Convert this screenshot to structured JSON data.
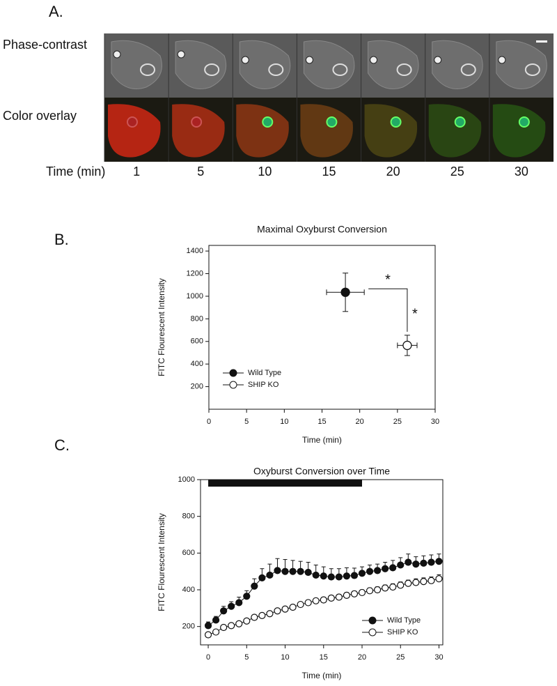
{
  "panel_labels": [
    "A.",
    "B.",
    "C."
  ],
  "panel_a": {
    "row_labels": [
      "Phase-contrast",
      "Color overlay"
    ],
    "time_label": "Time (min)",
    "times": [
      1,
      5,
      10,
      15,
      20,
      25,
      30
    ]
  },
  "chart_data": [
    {
      "type": "scatter",
      "title": "Maximal Oxyburst Conversion",
      "x_label": "Time (min)",
      "y_label": "FITC Flourescent Intensity",
      "xlim": [
        0,
        30
      ],
      "xticks": [
        0,
        5,
        10,
        15,
        20,
        25,
        30
      ],
      "ylim": [
        0,
        1450
      ],
      "yticks": [
        200,
        400,
        600,
        800,
        1000,
        1200,
        1400
      ],
      "legend": "lower left",
      "annotations": [
        "*",
        "*"
      ],
      "series": [
        {
          "name": "Wild Type",
          "color": "#111111",
          "filled": true,
          "x": [
            18.1
          ],
          "values": [
            1035
          ],
          "xerr": [
            2.5
          ],
          "yerr": [
            170
          ]
        },
        {
          "name": "SHIP KO",
          "color": "#111111",
          "filled": false,
          "x": [
            26.3
          ],
          "values": [
            565
          ],
          "xerr": [
            1.3
          ],
          "yerr": [
            90
          ]
        }
      ]
    },
    {
      "type": "line",
      "title": "Oxyburst Conversion over Time",
      "x_label": "Time (min)",
      "y_label": "FITC Flourescent Intensity",
      "xlim": [
        -1,
        30.5
      ],
      "xticks": [
        0,
        5,
        10,
        15,
        20,
        25,
        30
      ],
      "ylim": [
        100,
        1000
      ],
      "yticks": [
        200,
        400,
        600,
        800,
        1000
      ],
      "legend": "lower right",
      "highlight_span": [
        0,
        20
      ],
      "x": [
        0,
        1,
        2,
        3,
        4,
        5,
        6,
        7,
        8,
        9,
        10,
        11,
        12,
        13,
        14,
        15,
        16,
        17,
        18,
        19,
        20,
        21,
        22,
        23,
        24,
        25,
        26,
        27,
        28,
        29,
        30
      ],
      "series": [
        {
          "name": "Wild Type",
          "color": "#111111",
          "filled": true,
          "values": [
            205,
            235,
            285,
            310,
            330,
            365,
            420,
            465,
            480,
            505,
            500,
            500,
            500,
            495,
            480,
            475,
            470,
            470,
            475,
            478,
            490,
            500,
            505,
            515,
            520,
            535,
            550,
            540,
            545,
            550,
            555
          ],
          "yerr": [
            20,
            20,
            25,
            25,
            30,
            30,
            40,
            50,
            60,
            65,
            65,
            60,
            55,
            55,
            55,
            50,
            45,
            45,
            45,
            40,
            35,
            35,
            35,
            35,
            40,
            40,
            45,
            40,
            40,
            40,
            40
          ]
        },
        {
          "name": "SHIP KO",
          "color": "#111111",
          "filled": false,
          "values": [
            155,
            170,
            195,
            205,
            215,
            230,
            250,
            260,
            270,
            285,
            295,
            305,
            320,
            330,
            340,
            345,
            355,
            360,
            370,
            378,
            385,
            395,
            400,
            410,
            415,
            425,
            435,
            440,
            445,
            450,
            460
          ],
          "yerr": [
            10,
            10,
            10,
            10,
            10,
            10,
            10,
            10,
            10,
            12,
            12,
            12,
            12,
            14,
            14,
            14,
            14,
            15,
            15,
            15,
            15,
            15,
            16,
            16,
            18,
            18,
            18,
            20,
            20,
            20,
            22
          ]
        }
      ]
    }
  ]
}
